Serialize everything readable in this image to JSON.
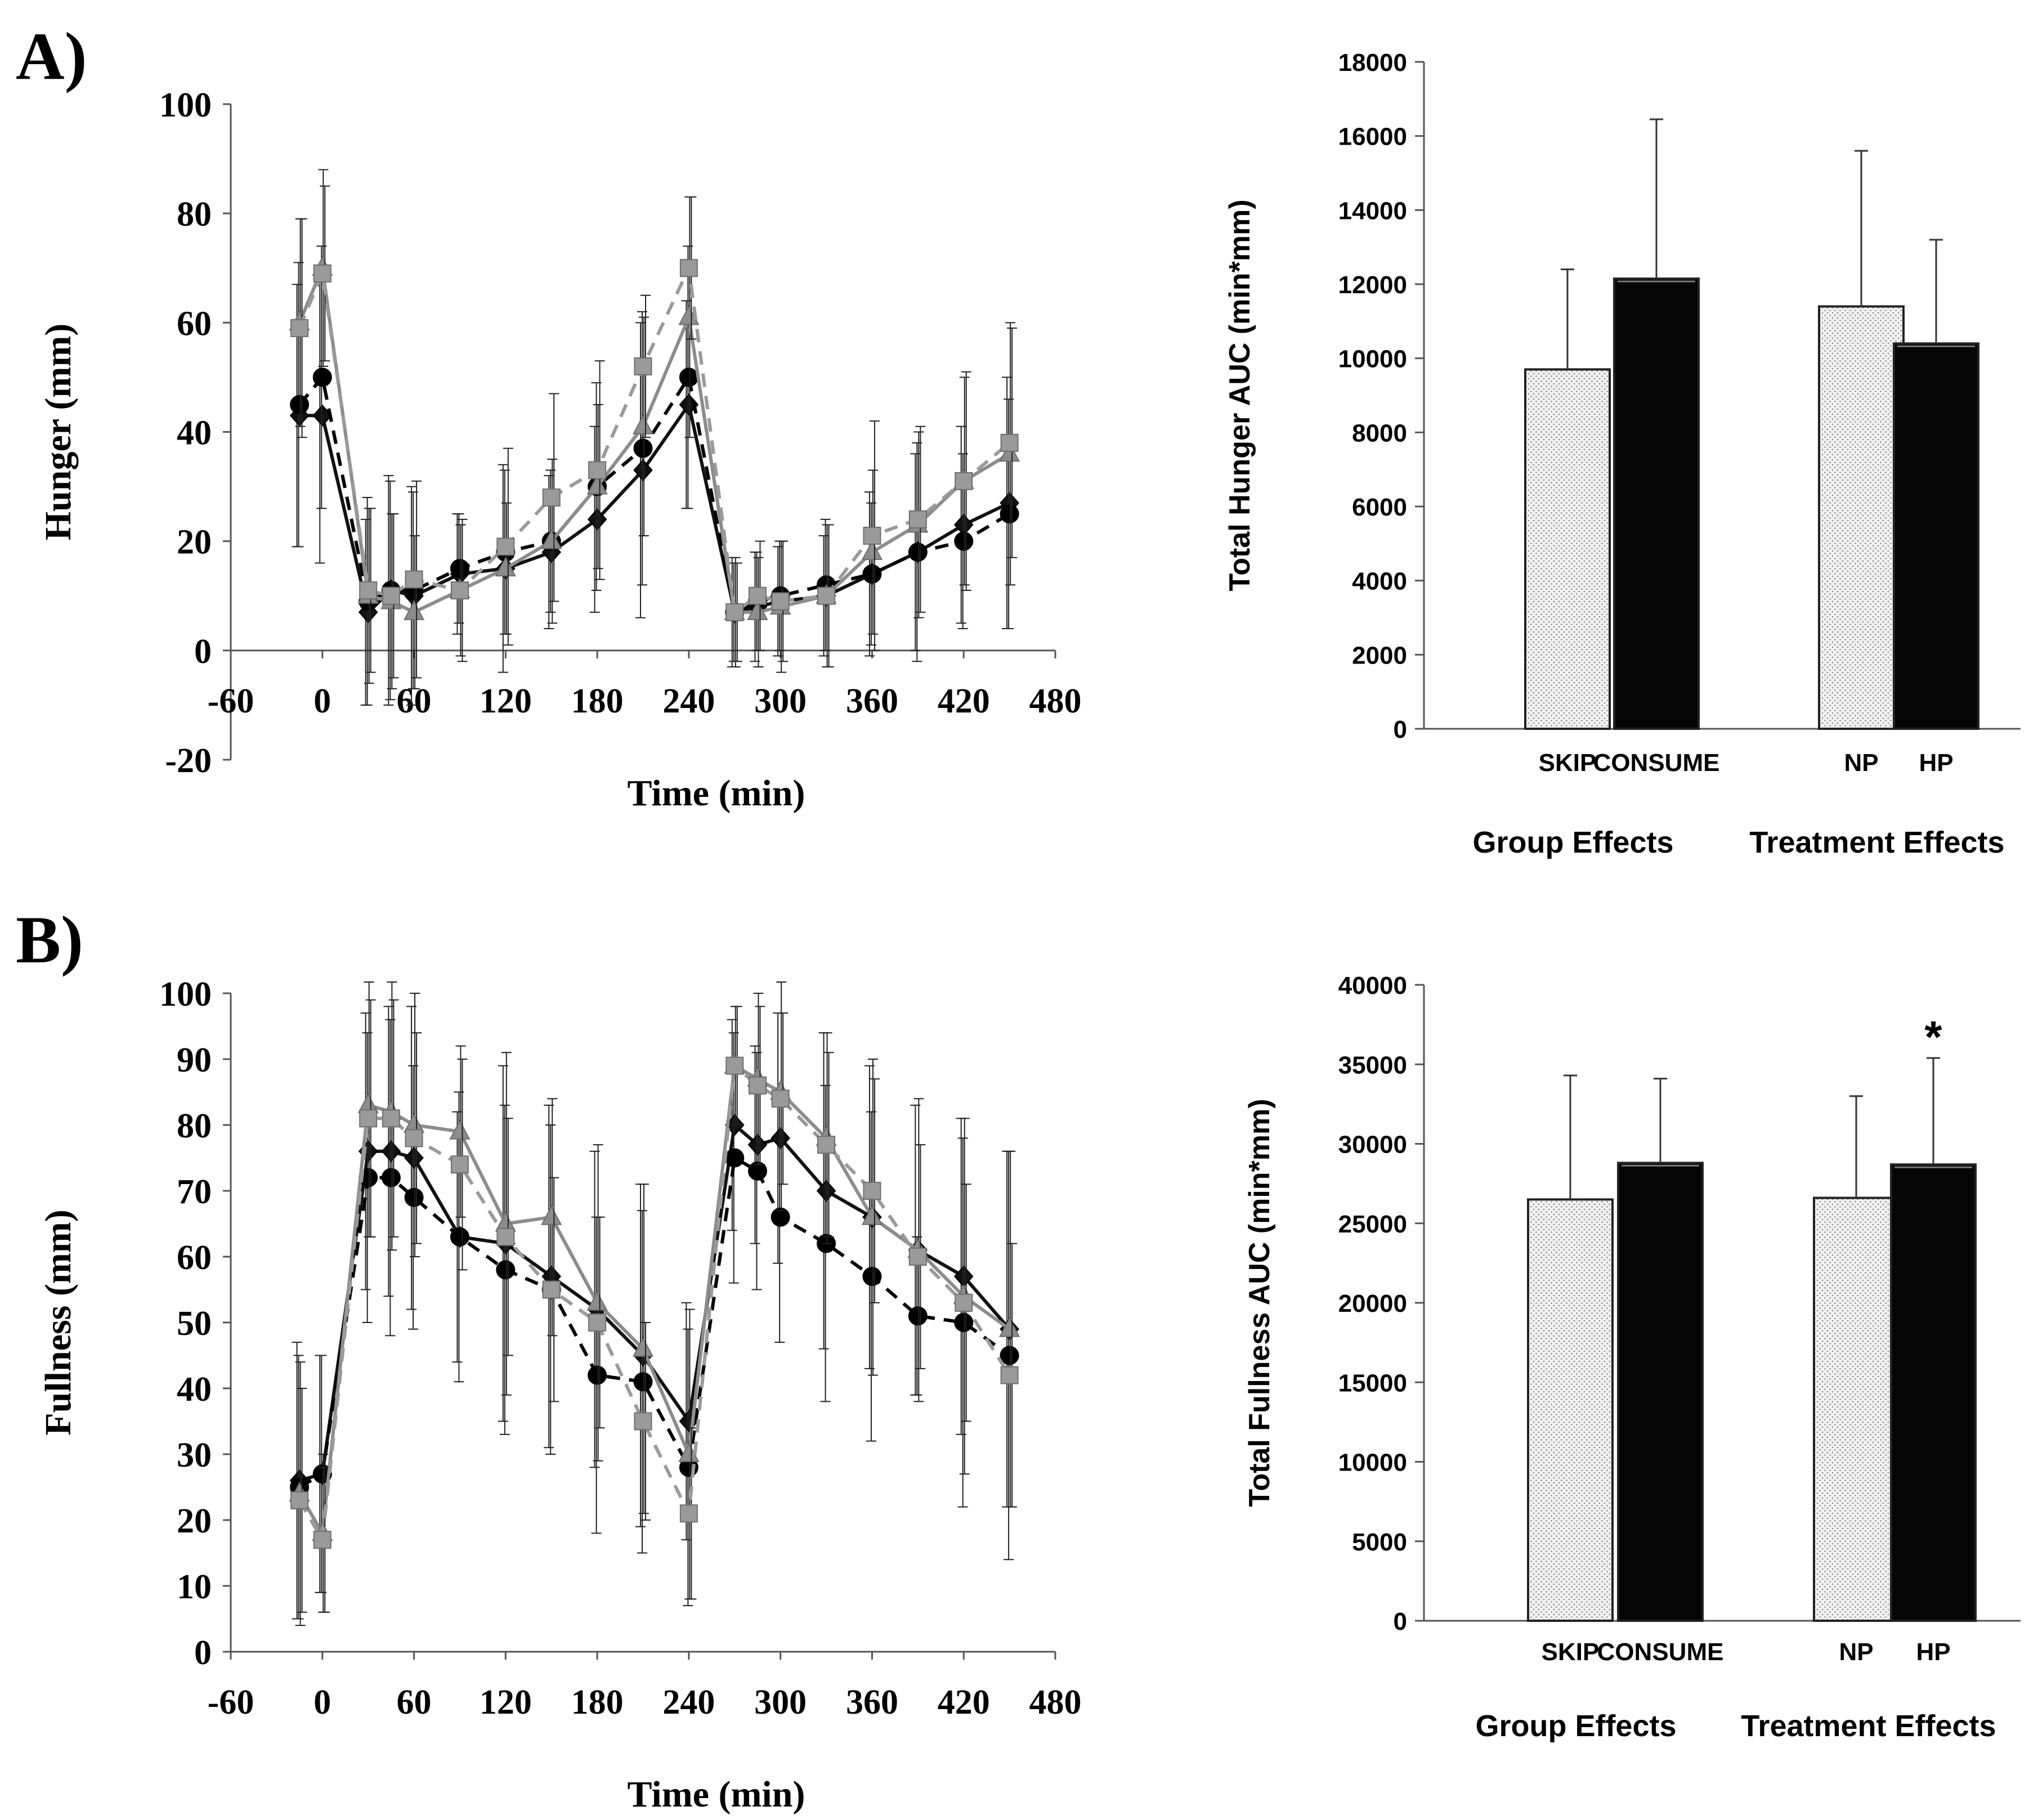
{
  "panel_labels": {
    "a": "A)",
    "b": "B)"
  },
  "chart_data": [
    {
      "id": "hunger-line",
      "type": "line",
      "xlabel": "Time (min)",
      "ylabel": "Hunger (mm)",
      "xlim": [
        -60,
        480
      ],
      "ylim": [
        -20,
        100
      ],
      "xticks": [
        -60,
        0,
        60,
        120,
        180,
        240,
        300,
        360,
        420,
        480
      ],
      "yticks": [
        -20,
        0,
        20,
        40,
        60,
        80,
        100
      ],
      "series": [
        {
          "marker": "diamond",
          "color": "#111111",
          "dash": false,
          "x": [
            -15,
            0,
            30,
            45,
            60,
            90,
            120,
            150,
            180,
            210,
            240,
            270,
            285,
            300,
            330,
            360,
            390,
            420,
            450
          ],
          "y": [
            43,
            43,
            7,
            11,
            10,
            14,
            15,
            18,
            24,
            33,
            45,
            7,
            8,
            9,
            10,
            14,
            18,
            23,
            27
          ],
          "err": [
            24,
            27,
            17,
            21,
            20,
            11,
            19,
            14,
            17,
            27,
            19,
            10,
            10,
            10,
            11,
            15,
            18,
            18,
            23
          ]
        },
        {
          "marker": "circle",
          "color": "#000000",
          "dash": true,
          "x": [
            -15,
            0,
            30,
            45,
            60,
            90,
            120,
            150,
            180,
            210,
            240,
            270,
            285,
            300,
            330,
            360,
            390,
            420,
            450
          ],
          "y": [
            45,
            50,
            9,
            11,
            11,
            15,
            18,
            20,
            30,
            37,
            50,
            7,
            9,
            10,
            12,
            14,
            18,
            20,
            25
          ],
          "err": [
            26,
            24,
            19,
            20,
            18,
            10,
            15,
            13,
            19,
            25,
            24,
            9,
            9,
            10,
            12,
            13,
            20,
            16,
            21
          ]
        },
        {
          "marker": "triangle",
          "color": "#8c8c8c",
          "dash": false,
          "x": [
            -15,
            0,
            30,
            45,
            60,
            90,
            120,
            150,
            180,
            210,
            240,
            270,
            285,
            300,
            330,
            360,
            390,
            420,
            450
          ],
          "y": [
            60,
            70,
            10,
            9,
            7,
            11,
            15,
            20,
            30,
            41,
            61,
            7,
            7,
            8,
            10,
            18,
            23,
            31,
            36
          ],
          "err": [
            19,
            18,
            16,
            16,
            14,
            12,
            12,
            15,
            15,
            20,
            22,
            10,
            10,
            12,
            13,
            15,
            17,
            19,
            24
          ]
        },
        {
          "marker": "square",
          "color": "#9a9a9a",
          "dash": true,
          "x": [
            -15,
            0,
            30,
            45,
            60,
            90,
            120,
            150,
            180,
            210,
            240,
            270,
            285,
            300,
            330,
            360,
            390,
            420,
            450
          ],
          "y": [
            59,
            69,
            11,
            10,
            13,
            11,
            19,
            28,
            33,
            52,
            70,
            7,
            10,
            9,
            10,
            21,
            24,
            31,
            38
          ],
          "err": [
            20,
            16,
            15,
            15,
            18,
            13,
            18,
            19,
            20,
            13,
            13,
            9,
            10,
            11,
            13,
            21,
            17,
            20,
            21
          ]
        }
      ]
    },
    {
      "id": "hunger-bar",
      "type": "bar",
      "ylabel": "Total Hunger AUC (min*mm)",
      "ylim": [
        0,
        18000
      ],
      "yticks": [
        0,
        2000,
        4000,
        6000,
        8000,
        10000,
        12000,
        14000,
        16000,
        18000
      ],
      "categories": [
        "SKIP",
        "CONSUME",
        "NP",
        "HP"
      ],
      "values": [
        9700,
        12150,
        11400,
        10400
      ],
      "errors": [
        2700,
        4300,
        4200,
        2800
      ],
      "fills": [
        "dotted",
        "black",
        "dotted",
        "black"
      ],
      "groups": [
        "Group Effects",
        "Treatment Effects"
      ],
      "annotations": []
    },
    {
      "id": "fullness-line",
      "type": "line",
      "xlabel": "Time (min)",
      "ylabel": "Fullness (mm)",
      "xlim": [
        -60,
        480
      ],
      "ylim": [
        0,
        100
      ],
      "xticks": [
        -60,
        0,
        60,
        120,
        180,
        240,
        300,
        360,
        420,
        480
      ],
      "yticks": [
        0,
        10,
        20,
        30,
        40,
        50,
        60,
        70,
        80,
        90,
        100
      ],
      "series": [
        {
          "marker": "diamond",
          "color": "#111111",
          "dash": false,
          "x": [
            -15,
            0,
            30,
            45,
            60,
            90,
            120,
            150,
            180,
            210,
            240,
            270,
            285,
            300,
            330,
            360,
            390,
            420,
            450
          ],
          "y": [
            26,
            27,
            76,
            76,
            75,
            63,
            62,
            57,
            52,
            45,
            35,
            80,
            77,
            78,
            70,
            66,
            61,
            57,
            49
          ],
          "err": [
            21,
            18,
            21,
            22,
            23,
            19,
            27,
            26,
            24,
            26,
            18,
            16,
            15,
            19,
            24,
            23,
            22,
            24,
            27
          ]
        },
        {
          "marker": "circle",
          "color": "#000000",
          "dash": true,
          "x": [
            -15,
            0,
            30,
            45,
            60,
            90,
            120,
            150,
            180,
            210,
            240,
            270,
            285,
            300,
            330,
            360,
            390,
            420,
            450
          ],
          "y": [
            25,
            27,
            72,
            72,
            69,
            63,
            58,
            55,
            42,
            41,
            28,
            75,
            73,
            66,
            62,
            57,
            51,
            50,
            45
          ],
          "err": [
            20,
            18,
            22,
            24,
            20,
            22,
            25,
            25,
            24,
            26,
            21,
            19,
            18,
            19,
            24,
            25,
            12,
            28,
            31
          ]
        },
        {
          "marker": "triangle",
          "color": "#8c8c8c",
          "dash": false,
          "x": [
            -15,
            0,
            30,
            45,
            60,
            90,
            120,
            150,
            180,
            210,
            240,
            270,
            285,
            300,
            330,
            360,
            390,
            420,
            450
          ],
          "y": [
            24,
            18,
            83,
            82,
            80,
            79,
            65,
            66,
            53,
            46,
            30,
            89,
            87,
            85,
            78,
            66,
            61,
            54,
            49
          ],
          "err": [
            20,
            12,
            20,
            21,
            20,
            13,
            26,
            18,
            24,
            25,
            22,
            9,
            13,
            18,
            16,
            24,
            23,
            27,
            27
          ]
        },
        {
          "marker": "square",
          "color": "#9a9a9a",
          "dash": true,
          "x": [
            -15,
            0,
            30,
            45,
            60,
            90,
            120,
            150,
            180,
            210,
            240,
            270,
            285,
            300,
            330,
            360,
            390,
            420,
            450
          ],
          "y": [
            23,
            17,
            81,
            81,
            78,
            74,
            63,
            55,
            50,
            35,
            21,
            89,
            86,
            84,
            77,
            70,
            60,
            53,
            42
          ],
          "err": [
            17,
            11,
            18,
            18,
            16,
            16,
            18,
            17,
            16,
            15,
            13,
            9,
            12,
            13,
            14,
            17,
            17,
            18,
            20
          ]
        }
      ]
    },
    {
      "id": "fullness-bar",
      "type": "bar",
      "ylabel": "Total Fullness AUC (min*mm)",
      "ylim": [
        0,
        40000
      ],
      "yticks": [
        0,
        5000,
        10000,
        15000,
        20000,
        25000,
        30000,
        35000,
        40000
      ],
      "categories": [
        "SKIP",
        "CONSUME",
        "NP",
        "HP"
      ],
      "values": [
        26500,
        28800,
        26600,
        28700
      ],
      "errors": [
        7800,
        5300,
        6400,
        6700
      ],
      "fills": [
        "dotted",
        "black",
        "dotted",
        "black"
      ],
      "groups": [
        "Group Effects",
        "Treatment Effects"
      ],
      "annotations": [
        {
          "category": "HP",
          "text": "*"
        }
      ]
    }
  ]
}
